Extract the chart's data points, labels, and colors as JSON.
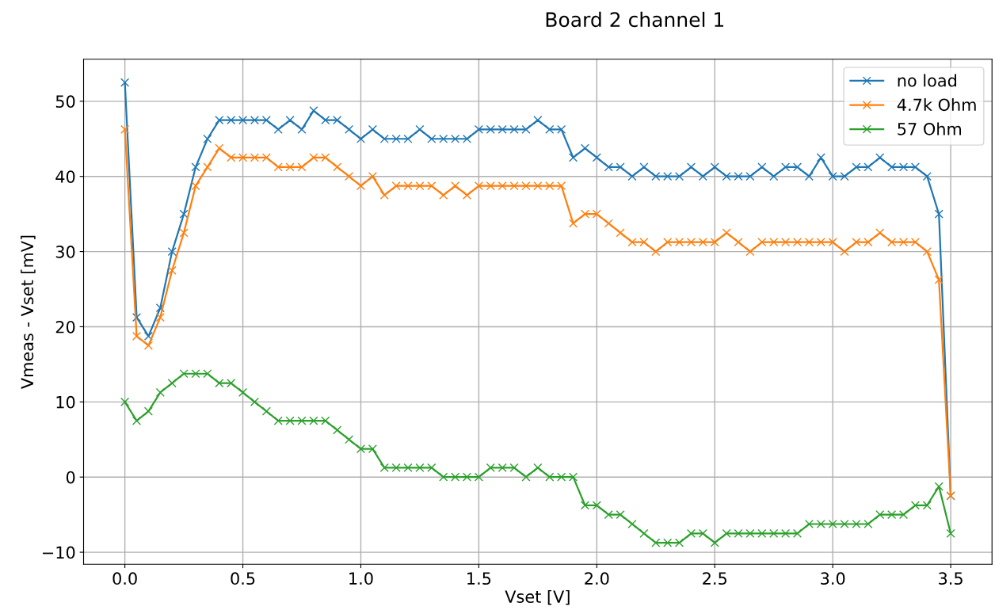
{
  "chart_data": {
    "type": "line",
    "title": "Board 2 channel 1",
    "xlabel": "Vset [V]",
    "ylabel": "Vmeas - Vset [mV]",
    "x": [
      0,
      0.05,
      0.1,
      0.15,
      0.2,
      0.25,
      0.3,
      0.35,
      0.4,
      0.45,
      0.5,
      0.55,
      0.6,
      0.65,
      0.7,
      0.75,
      0.8,
      0.85,
      0.9,
      0.95,
      1.0,
      1.05,
      1.1,
      1.15,
      1.2,
      1.25,
      1.3,
      1.35,
      1.4,
      1.45,
      1.5,
      1.55,
      1.6,
      1.65,
      1.7,
      1.75,
      1.8,
      1.85,
      1.9,
      1.95,
      2.0,
      2.05,
      2.1,
      2.15,
      2.2,
      2.25,
      2.3,
      2.35,
      2.4,
      2.45,
      2.5,
      2.55,
      2.6,
      2.65,
      2.7,
      2.75,
      2.8,
      2.85,
      2.9,
      2.95,
      3.0,
      3.05,
      3.1,
      3.15,
      3.2,
      3.25,
      3.3,
      3.35,
      3.4,
      3.45,
      3.5
    ],
    "series": [
      {
        "name": "no load",
        "color": "#1f77b4",
        "values": [
          52.5,
          21.25,
          18.75,
          22.5,
          30,
          35,
          41.25,
          45,
          47.5,
          47.5,
          47.5,
          47.5,
          47.5,
          46.25,
          47.5,
          46.25,
          48.75,
          47.5,
          47.5,
          46.25,
          45,
          46.25,
          45,
          45,
          45,
          46.25,
          45,
          45,
          45,
          45,
          46.25,
          46.25,
          46.25,
          46.25,
          46.25,
          47.5,
          46.25,
          46.25,
          42.5,
          43.75,
          42.5,
          41.25,
          41.25,
          40,
          41.25,
          40,
          40,
          40,
          41.25,
          40,
          41.25,
          40,
          40,
          40,
          41.25,
          40,
          41.25,
          41.25,
          40,
          42.5,
          40,
          40,
          41.25,
          41.25,
          42.5,
          41.25,
          41.25,
          41.25,
          40,
          35,
          -2.5
        ]
      },
      {
        "name": "4.7k Ohm",
        "color": "#ff7f0e",
        "values": [
          46.25,
          18.75,
          17.5,
          21.25,
          27.5,
          32.5,
          38.75,
          41.25,
          43.75,
          42.5,
          42.5,
          42.5,
          42.5,
          41.25,
          41.25,
          41.25,
          42.5,
          42.5,
          41.25,
          40,
          38.75,
          40,
          37.5,
          38.75,
          38.75,
          38.75,
          38.75,
          37.5,
          38.75,
          37.5,
          38.75,
          38.75,
          38.75,
          38.75,
          38.75,
          38.75,
          38.75,
          38.75,
          33.75,
          35,
          35,
          33.75,
          32.5,
          31.25,
          31.25,
          30,
          31.25,
          31.25,
          31.25,
          31.25,
          31.25,
          32.5,
          31.25,
          30,
          31.25,
          31.25,
          31.25,
          31.25,
          31.25,
          31.25,
          31.25,
          30,
          31.25,
          31.25,
          32.5,
          31.25,
          31.25,
          31.25,
          30,
          26.25,
          -2.5
        ]
      },
      {
        "name": "57 Ohm",
        "color": "#2ca02c",
        "values": [
          10,
          7.5,
          8.75,
          11.25,
          12.5,
          13.75,
          13.75,
          13.75,
          12.5,
          12.5,
          11.25,
          10,
          8.75,
          7.5,
          7.5,
          7.5,
          7.5,
          7.5,
          6.25,
          5,
          3.75,
          3.75,
          1.25,
          1.25,
          1.25,
          1.25,
          1.25,
          0,
          0,
          0,
          0,
          1.25,
          1.25,
          1.25,
          0,
          1.25,
          0,
          0,
          0,
          -3.75,
          -3.75,
          -5,
          -5,
          -6.25,
          -7.5,
          -8.75,
          -8.75,
          -8.75,
          -7.5,
          -7.5,
          -8.75,
          -7.5,
          -7.5,
          -7.5,
          -7.5,
          -7.5,
          -7.5,
          -7.5,
          -6.25,
          -6.25,
          -6.25,
          -6.25,
          -6.25,
          -6.25,
          -5,
          -5,
          -5,
          -3.75,
          -3.75,
          -1.25,
          -7.5
        ]
      }
    ],
    "xlim": [
      -0.175,
      3.675
    ],
    "ylim": [
      -11.6,
      55.6
    ],
    "xticks": [
      {
        "value": 0,
        "label": "0.0"
      },
      0.5,
      {
        "value": 1,
        "label": "1.0"
      },
      1.5,
      {
        "value": 2,
        "label": "2.0"
      },
      2.5,
      {
        "value": 3,
        "label": "3.0"
      },
      3.5
    ],
    "yticks": [
      {
        "value": -10,
        "label": "−10"
      },
      0,
      10,
      20,
      30,
      40,
      50
    ],
    "grid": true,
    "legend": "top right",
    "marker": "cross",
    "line_style": "solid"
  }
}
